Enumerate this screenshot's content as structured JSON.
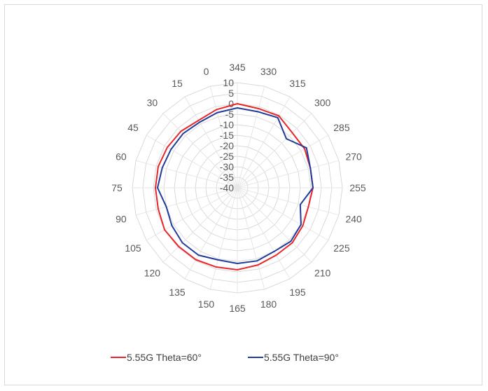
{
  "chart_data": {
    "type": "radar",
    "title": "",
    "categories": [
      "345",
      "330",
      "315",
      "300",
      "285",
      "270",
      "255",
      "240",
      "225",
      "210",
      "195",
      "180",
      "165",
      "150",
      "135",
      "120",
      "105",
      "90",
      "75",
      "60",
      "45",
      "30",
      "15",
      "0"
    ],
    "radial_ticks": [
      "10",
      "5",
      "0",
      "-5",
      "-10",
      "-15",
      "-20",
      "-25",
      "-30",
      "-35",
      "-40"
    ],
    "rlim": [
      -40,
      10
    ],
    "grid": true,
    "legend_position": "bottom",
    "series": [
      {
        "name": "5.55G  Theta=60°",
        "color": "#e8262a",
        "values": [
          0,
          -1,
          -0.5,
          -3,
          -3,
          -4,
          -4,
          -5,
          -4,
          -3,
          -3,
          -2,
          -1,
          -1,
          -0.5,
          -0.5,
          0,
          -1,
          -1,
          -1,
          -1.5,
          -2,
          -3,
          -1.5
        ]
      },
      {
        "name": "5.55G  Theta=90°",
        "color": "#1f3b9b",
        "values": [
          -2,
          -2.5,
          -1.5,
          -7,
          -2,
          -4,
          -4,
          -9,
          -5,
          -4,
          -5,
          -4,
          -4,
          -4.5,
          -3,
          -3,
          -4,
          -5,
          -2,
          -3,
          -3.5,
          -3.5,
          -4,
          -3
        ]
      }
    ]
  }
}
